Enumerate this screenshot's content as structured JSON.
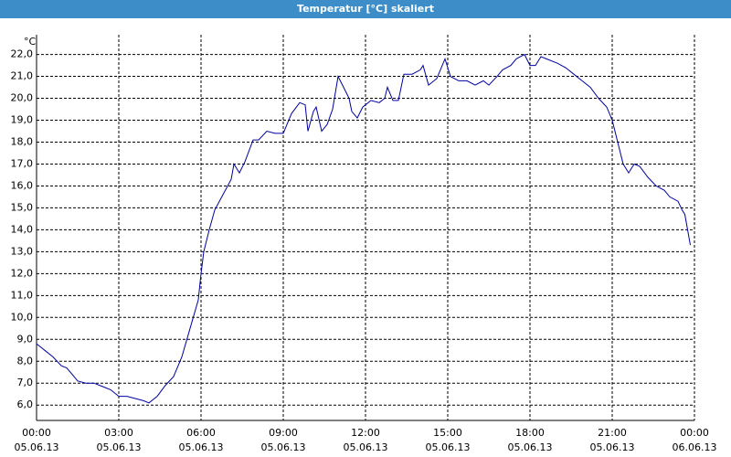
{
  "chart_data": {
    "type": "line",
    "title": "Temperatur [°C] skaliert",
    "y_unit": "°C",
    "xlim": [
      0,
      24
    ],
    "ylim": [
      5.3,
      22.9
    ],
    "xticks": [
      {
        "value": 0,
        "label": "00:00\n05.06.13"
      },
      {
        "value": 3,
        "label": "03:00\n05.06.13"
      },
      {
        "value": 6,
        "label": "06:00\n05.06.13"
      },
      {
        "value": 9,
        "label": "09:00\n05.06.13"
      },
      {
        "value": 12,
        "label": "12:00\n05.06.13"
      },
      {
        "value": 15,
        "label": "15:00\n05.06.13"
      },
      {
        "value": 18,
        "label": "18:00\n05.06.13"
      },
      {
        "value": 21,
        "label": "21:00\n05.06.13"
      },
      {
        "value": 24,
        "label": "00:00\n06.06.13"
      }
    ],
    "yticks": [
      {
        "value": 6,
        "label": "6,0"
      },
      {
        "value": 7,
        "label": "7,0"
      },
      {
        "value": 8,
        "label": "8,0"
      },
      {
        "value": 9,
        "label": "9,0"
      },
      {
        "value": 10,
        "label": "10,0"
      },
      {
        "value": 11,
        "label": "11,0"
      },
      {
        "value": 12,
        "label": "12,0"
      },
      {
        "value": 13,
        "label": "13,0"
      },
      {
        "value": 14,
        "label": "14,0"
      },
      {
        "value": 15,
        "label": "15,0"
      },
      {
        "value": 16,
        "label": "16,0"
      },
      {
        "value": 17,
        "label": "17,0"
      },
      {
        "value": 18,
        "label": "18,0"
      },
      {
        "value": 19,
        "label": "19,0"
      },
      {
        "value": 20,
        "label": "20,0"
      },
      {
        "value": 21,
        "label": "21,0"
      },
      {
        "value": 22,
        "label": "22,0"
      }
    ],
    "grid": true,
    "series": [
      {
        "name": "Temperatur",
        "color": "#0000a0",
        "x": [
          0,
          0.3,
          0.6,
          0.9,
          1.1,
          1.3,
          1.5,
          1.8,
          2.1,
          2.3,
          2.5,
          2.7,
          3.0,
          3.3,
          3.6,
          3.9,
          4.1,
          4.4,
          4.7,
          5.0,
          5.3,
          5.6,
          5.9,
          6.0,
          6.1,
          6.3,
          6.5,
          6.8,
          7.1,
          7.2,
          7.4,
          7.6,
          7.9,
          8.1,
          8.4,
          8.7,
          9.0,
          9.3,
          9.6,
          9.8,
          9.9,
          10.1,
          10.2,
          10.4,
          10.6,
          10.8,
          11.0,
          11.2,
          11.4,
          11.5,
          11.7,
          11.9,
          12.2,
          12.5,
          12.7,
          12.8,
          13.0,
          13.2,
          13.4,
          13.7,
          14.0,
          14.1,
          14.3,
          14.6,
          14.9,
          15.1,
          15.4,
          15.7,
          16.0,
          16.3,
          16.5,
          16.8,
          17.0,
          17.3,
          17.5,
          17.8,
          18.0,
          18.2,
          18.4,
          18.6,
          19.0,
          19.3,
          19.6,
          19.9,
          20.2,
          20.5,
          20.8,
          21.0,
          21.2,
          21.4,
          21.6,
          21.8,
          22.0,
          22.3,
          22.6,
          22.9,
          23.1,
          23.4,
          23.55,
          23.65,
          23.75,
          23.85
        ],
        "values": [
          8.8,
          8.5,
          8.2,
          7.8,
          7.7,
          7.4,
          7.1,
          7.0,
          7.0,
          6.9,
          6.8,
          6.7,
          6.4,
          6.4,
          6.3,
          6.2,
          6.1,
          6.4,
          6.9,
          7.3,
          8.2,
          9.5,
          10.8,
          12.0,
          13.0,
          14.0,
          14.9,
          15.6,
          16.3,
          17.0,
          16.6,
          17.1,
          18.1,
          18.1,
          18.5,
          18.4,
          18.4,
          19.3,
          19.8,
          19.7,
          18.5,
          19.4,
          19.6,
          18.5,
          18.8,
          19.5,
          21.0,
          20.5,
          20.0,
          19.4,
          19.1,
          19.6,
          19.9,
          19.8,
          20.0,
          20.5,
          19.9,
          19.9,
          21.1,
          21.1,
          21.3,
          21.5,
          20.6,
          20.9,
          21.8,
          21.0,
          20.8,
          20.8,
          20.6,
          20.8,
          20.6,
          21.0,
          21.3,
          21.5,
          21.8,
          22.0,
          21.5,
          21.5,
          21.9,
          21.8,
          21.6,
          21.4,
          21.1,
          20.8,
          20.5,
          20.0,
          19.6,
          19.0,
          18.0,
          17.0,
          16.6,
          17.0,
          16.9,
          16.4,
          16.0,
          15.8,
          15.5,
          15.3,
          14.9,
          14.7,
          14.0,
          13.3
        ]
      }
    ]
  }
}
